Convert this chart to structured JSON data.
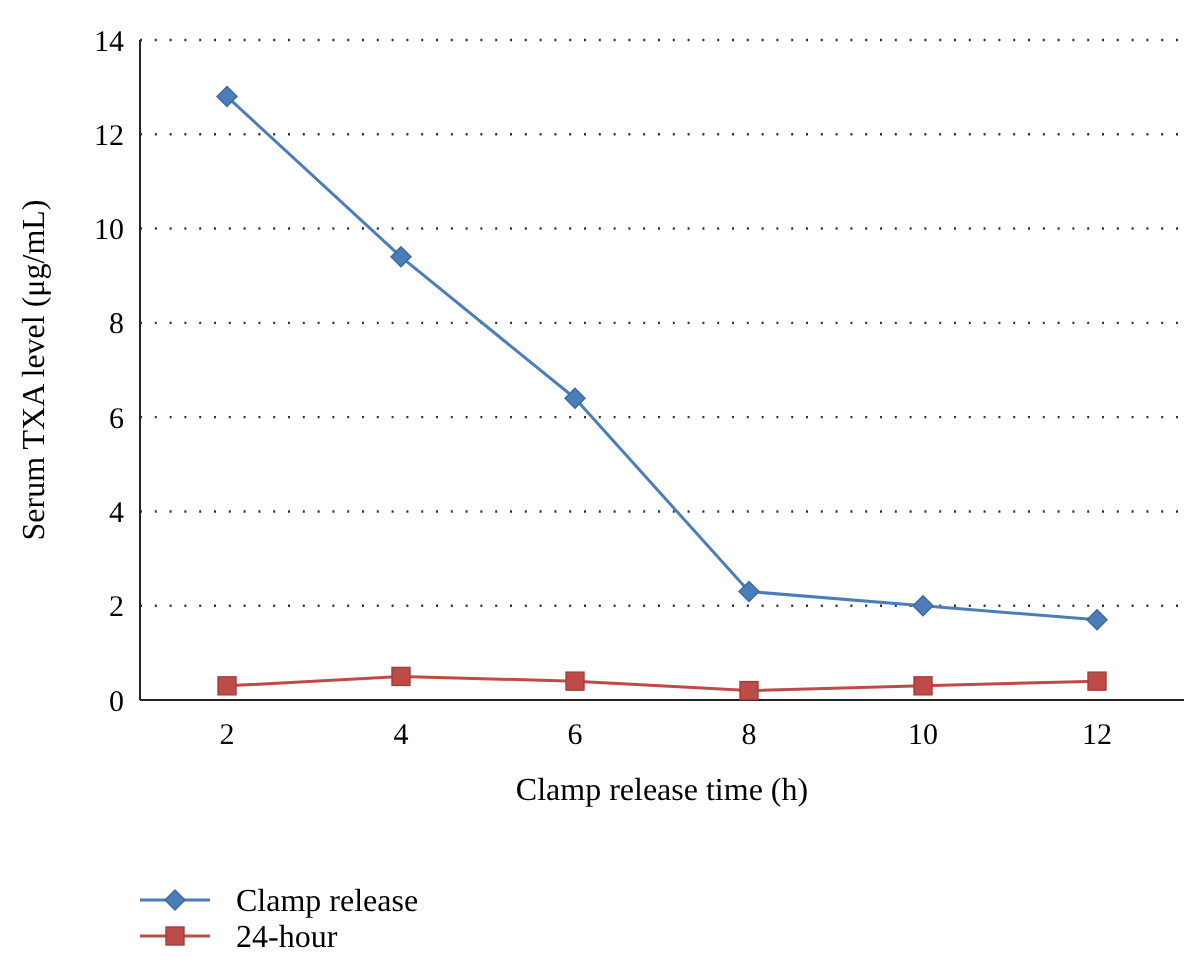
{
  "chart_data": {
    "type": "line",
    "xlabel": "Clamp release time (h)",
    "ylabel": "Serum TXA level (μg/mL)",
    "categories": [
      "2",
      "4",
      "6",
      "8",
      "10",
      "12"
    ],
    "series": [
      {
        "name": "Clamp release",
        "color": "#4a7ebb",
        "marker": "diamond",
        "values": [
          12.8,
          9.4,
          6.4,
          2.3,
          2.0,
          1.7
        ]
      },
      {
        "name": "24-hour",
        "color": "#be4b48",
        "marker": "square",
        "values": [
          0.3,
          0.5,
          0.4,
          0.2,
          0.3,
          0.4
        ]
      }
    ],
    "ylim": [
      0,
      14
    ],
    "yticks": [
      0,
      2,
      4,
      6,
      8,
      10,
      12,
      14
    ],
    "grid": "y",
    "legend": "bottom left",
    "line_style": "solid"
  }
}
